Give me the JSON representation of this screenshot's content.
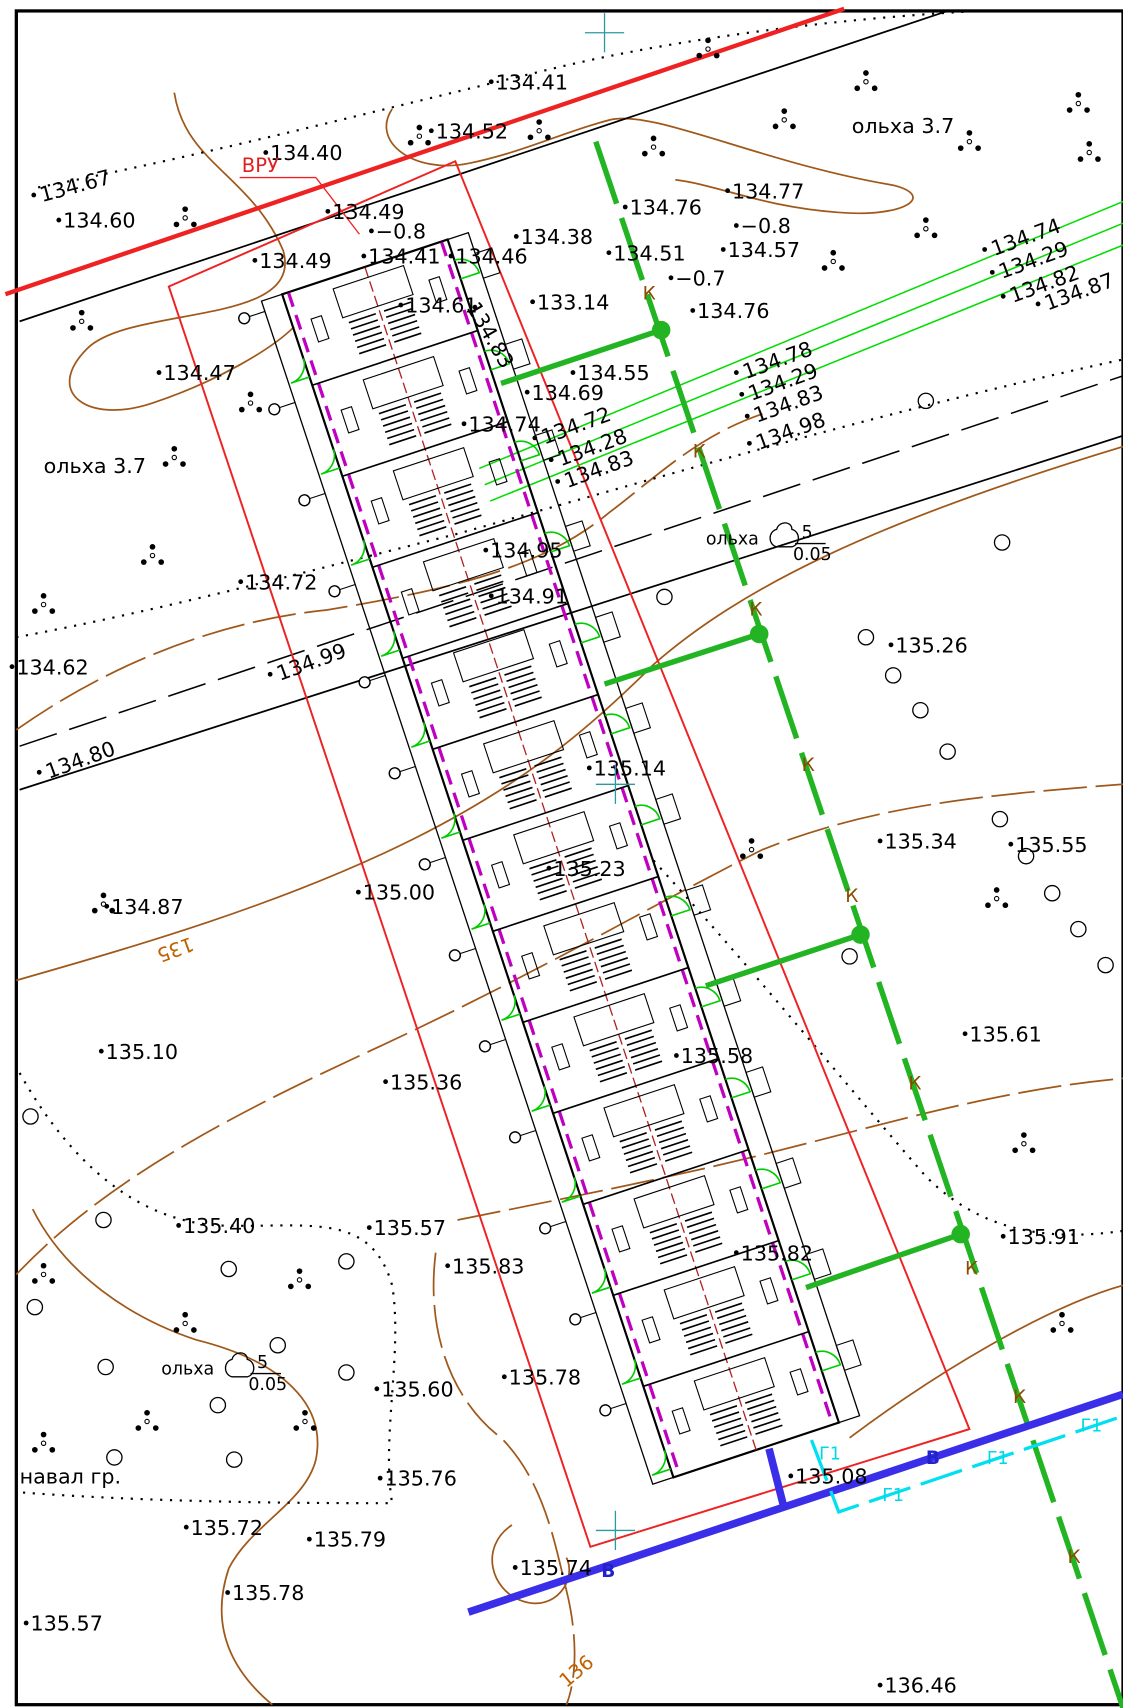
{
  "elevations": [
    "134.41",
    "134.52",
    "134.40",
    "134.67",
    "134.60",
    "134.49",
    "−0.8",
    "134.41",
    "134.46",
    "134.49",
    "134.38",
    "134.51",
    "−0.7",
    "134.76",
    "134.77",
    "−0.8",
    "134.57",
    "134.76",
    "133.14",
    "134.61",
    "134.83",
    "134.74",
    "134.29",
    "134.82",
    "134.87",
    "134.78",
    "134.29",
    "134.83",
    "134.98",
    "134.55",
    "134.69",
    "134.74",
    "134.47",
    "134.72",
    "134.28",
    "134.83",
    "134.95",
    "134.91",
    "134.72",
    "134.62",
    "134.99",
    "134.80",
    "135.26",
    "135.14",
    "135.34",
    "135.55",
    "135.23",
    "135.00",
    "134.87",
    "135.61",
    "135.10",
    "135.58",
    "135.36",
    "135.40",
    "135.57",
    "135.91",
    "135.83",
    "135.82",
    "135.78",
    "135.60",
    "135.76",
    "135.08",
    "135.72",
    "135.79",
    "135.74",
    "135.78",
    "135.57",
    "136.46"
  ],
  "annotations": [
    "ольха 3.7",
    "ольха 3.7",
    "навал гр.",
    "ВРУ"
  ],
  "trees": [
    {
      "name": "ольха",
      "numerator": "5",
      "denominator": "0.05"
    },
    {
      "name": "ольха",
      "numerator": "5",
      "denominator": "0.05"
    }
  ],
  "contour_labels": [
    "135",
    "136"
  ],
  "utility_labels": {
    "sewer": [
      "К",
      "К",
      "К",
      "К",
      "К",
      "К",
      "К",
      "К",
      "К"
    ],
    "water": [
      "В",
      "В"
    ],
    "gas": [
      "Г1",
      "Г1",
      "Г1",
      "Г1"
    ]
  }
}
